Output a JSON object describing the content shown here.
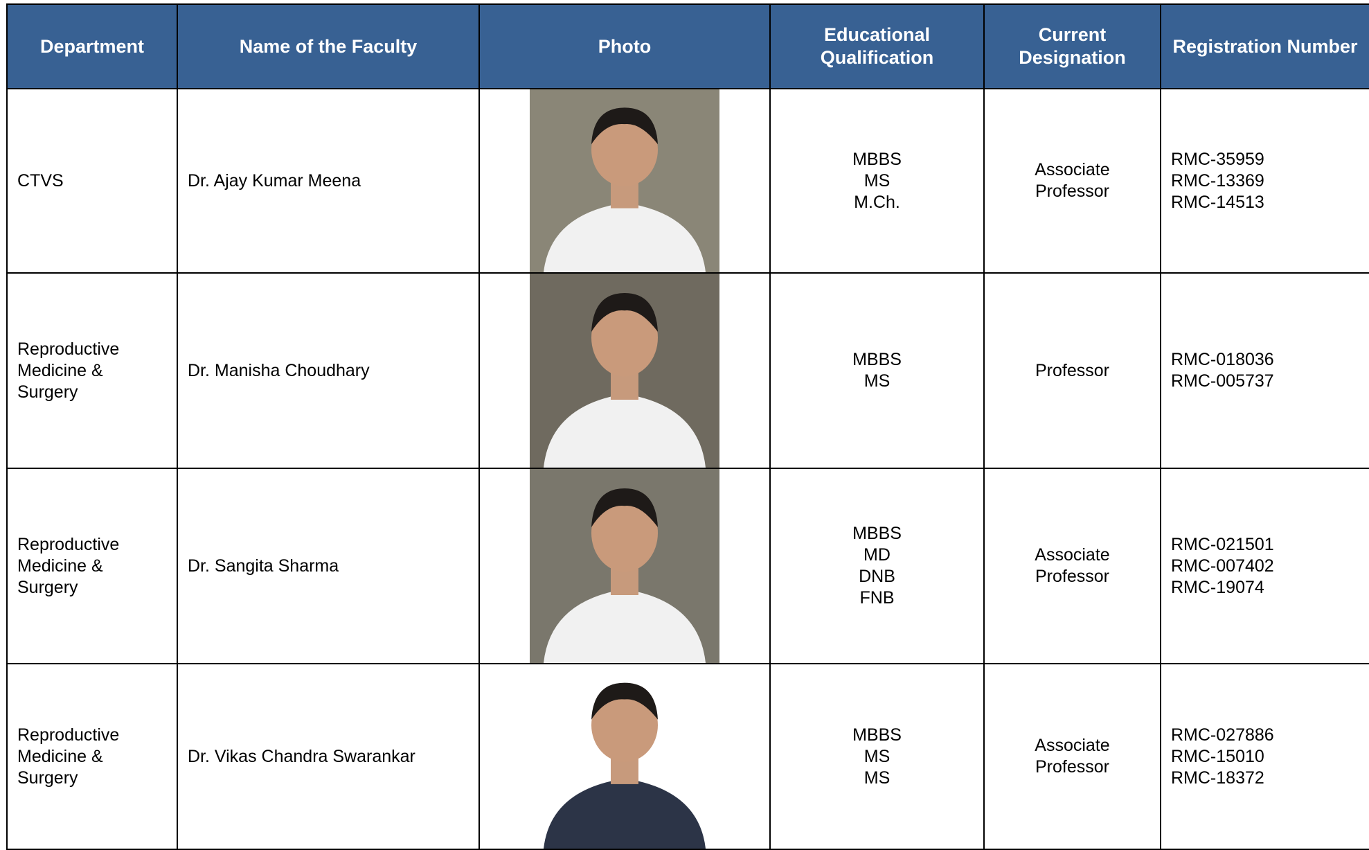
{
  "table": {
    "headers": [
      "Department",
      "Name of the Faculty",
      "Photo",
      "Educational Qualification",
      "Current Designation",
      "Registration Number"
    ],
    "rows": [
      {
        "department": [
          "CTVS"
        ],
        "name": "Dr. Ajay Kumar Meena",
        "qualification": [
          "MBBS",
          "MS",
          "M.Ch."
        ],
        "designation": [
          "Associate",
          "Professor"
        ],
        "registration": [
          "RMC-35959",
          "RMC-13369",
          "RMC-14513"
        ]
      },
      {
        "department": [
          "Reproductive",
          "Medicine &",
          "Surgery"
        ],
        "name": "Dr. Manisha Choudhary",
        "qualification": [
          "MBBS",
          "MS"
        ],
        "designation": [
          "Professor"
        ],
        "registration": [
          "RMC-018036",
          "RMC-005737"
        ]
      },
      {
        "department": [
          "Reproductive",
          "Medicine &",
          "Surgery"
        ],
        "name": "Dr. Sangita Sharma",
        "qualification": [
          "MBBS",
          "MD",
          "DNB",
          "FNB"
        ],
        "designation": [
          "Associate",
          "Professor"
        ],
        "registration": [
          "RMC-021501",
          "RMC-007402",
          "RMC-19074"
        ]
      },
      {
        "department": [
          "Reproductive",
          "Medicine &",
          "Surgery"
        ],
        "name": "Dr. Vikas Chandra Swarankar",
        "qualification": [
          "MBBS",
          "MS",
          "MS"
        ],
        "designation": [
          "Associate",
          "Professor"
        ],
        "registration": [
          "RMC-027886",
          "RMC-15010",
          "RMC-18372"
        ]
      }
    ]
  }
}
